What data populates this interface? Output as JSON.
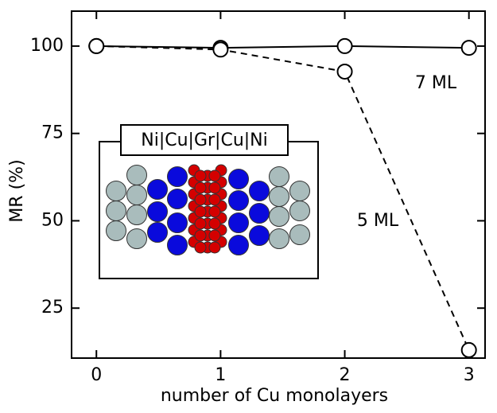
{
  "chart_data": {
    "type": "line",
    "x": [
      0,
      1,
      2,
      3
    ],
    "series": [
      {
        "name": "7 ML",
        "color": "#000000",
        "dash": false,
        "values": [
          100,
          99.5,
          100,
          99.5
        ]
      },
      {
        "name": "5 ML",
        "color": "#000000",
        "dash": true,
        "values": [
          100,
          99,
          92.7,
          13
        ]
      }
    ],
    "xlim": [
      -0.2,
      3.13
    ],
    "ylim": [
      10.7,
      110
    ],
    "xticks": [
      0,
      1,
      2,
      3
    ],
    "yticks": [
      25,
      50,
      75,
      100
    ],
    "xlabel": "number of Cu monolayers",
    "ylabel": "MR (%)",
    "inset_label": "Ni|Cu|Gr|Cu|Ni"
  }
}
